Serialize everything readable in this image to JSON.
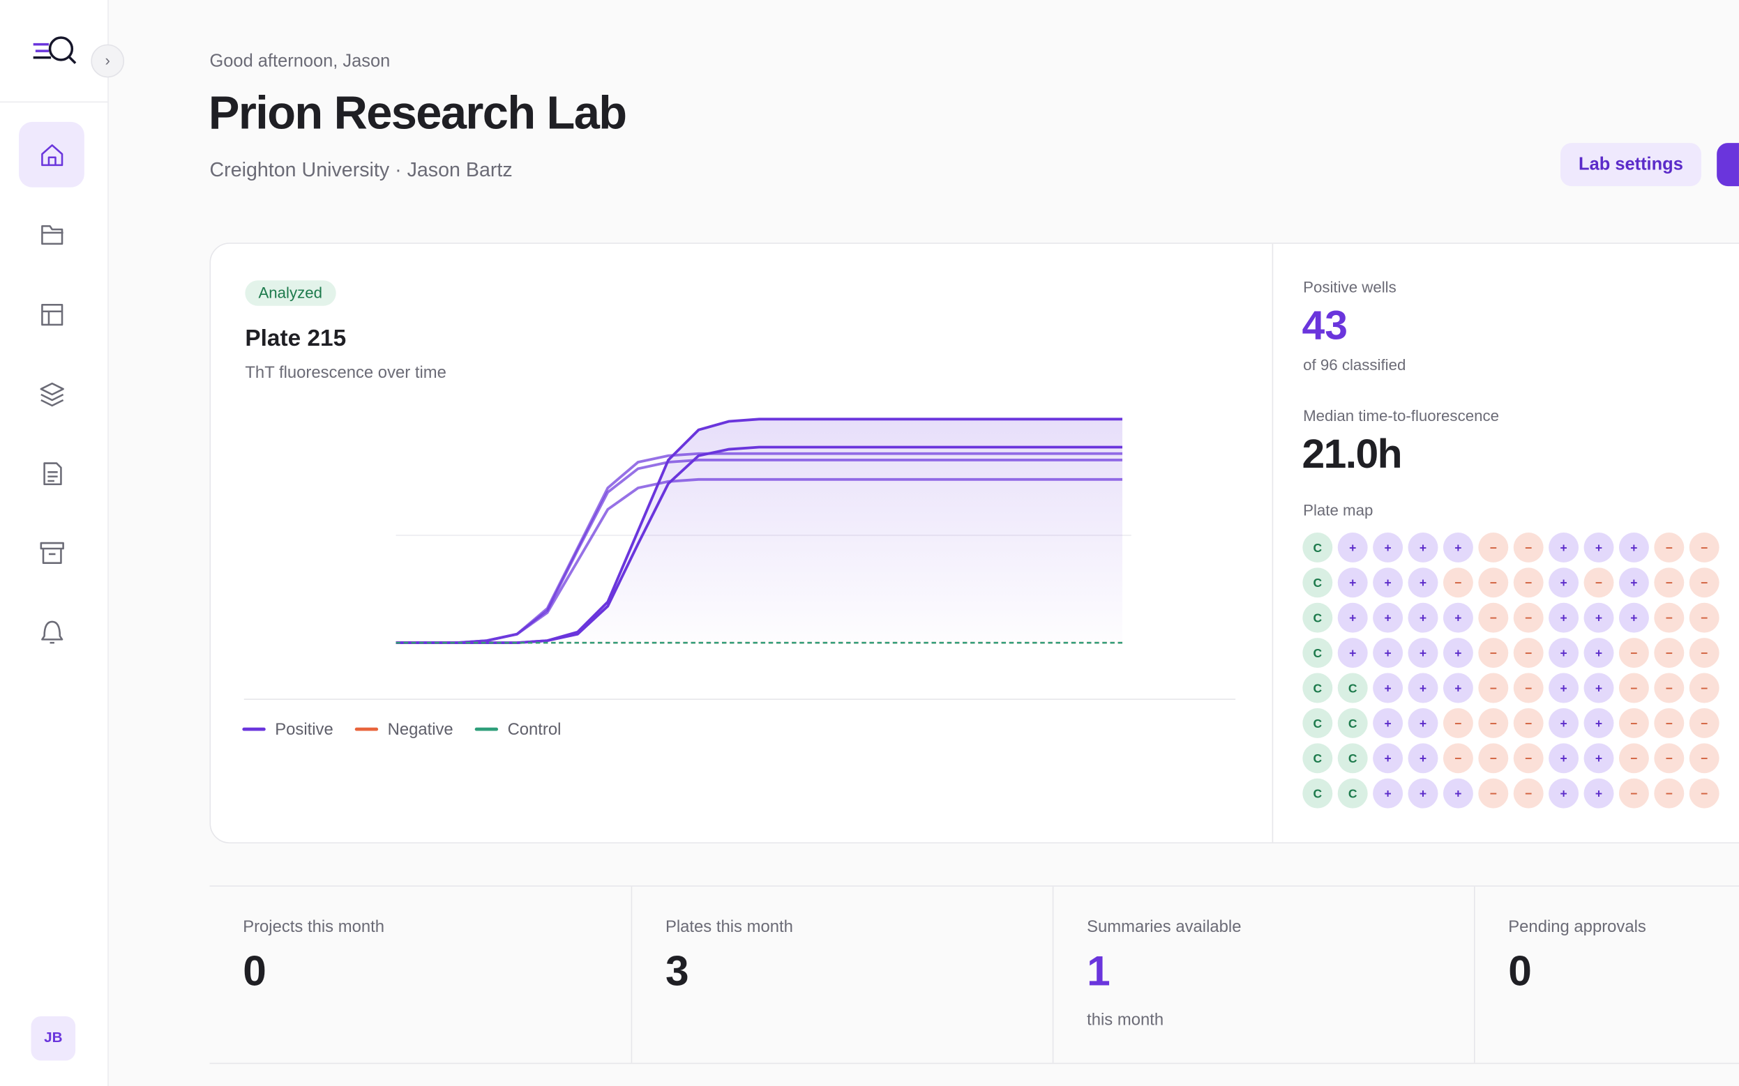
{
  "sidebar": {
    "avatar": "JB"
  },
  "header": {
    "greeting": "Good afternoon, Jason",
    "title": "Prion Research Lab",
    "subtitle": "Creighton University · Jason Bartz",
    "settings_button": "Lab settings"
  },
  "plate_card": {
    "badge": "Analyzed",
    "title": "Plate 215",
    "subtitle": "ThT fluorescence over time",
    "chart_data": {
      "type": "line",
      "x": [
        0,
        3,
        6,
        9,
        12,
        15,
        18,
        21,
        24,
        27,
        30,
        33,
        36,
        39,
        42,
        45,
        48,
        51,
        54,
        57,
        60,
        63,
        66,
        69,
        72
      ],
      "xlim": [
        0,
        72
      ],
      "ylim": [
        -5,
        110
      ],
      "yticks": [
        50
      ],
      "grid": true,
      "series": [
        {
          "name": "Positive",
          "color": "#6a35dc",
          "fill": true,
          "lines": [
            [
              0,
              0,
              0,
              0,
              0,
              1,
              5,
              19,
              52,
              85,
              99,
              103,
              104,
              104,
              104,
              104,
              104,
              104,
              104,
              104,
              104,
              104,
              104,
              104,
              104
            ],
            [
              0,
              0,
              0,
              0,
              0,
              1,
              4,
              17,
              46,
              74,
              87,
              90,
              91,
              91,
              91,
              91,
              91,
              91,
              91,
              91,
              91,
              91,
              91,
              91,
              91
            ],
            [
              0,
              0,
              0,
              1,
              4,
              16,
              44,
              72,
              84,
              87,
              88,
              88,
              88,
              88,
              88,
              88,
              88,
              88,
              88,
              88,
              88,
              88,
              88,
              88,
              88
            ],
            [
              0,
              0,
              0,
              1,
              4,
              15,
              43,
              70,
              81,
              84,
              85,
              85,
              85,
              85,
              85,
              85,
              85,
              85,
              85,
              85,
              85,
              85,
              85,
              85,
              85
            ],
            [
              0,
              0,
              0,
              1,
              4,
              14,
              38,
              62,
              72,
              75,
              76,
              76,
              76,
              76,
              76,
              76,
              76,
              76,
              76,
              76,
              76,
              76,
              76,
              76,
              76
            ]
          ]
        },
        {
          "name": "Negative",
          "color": "#e8643c",
          "dashed": true,
          "lines": [
            [
              0,
              0,
              0,
              0,
              0,
              0,
              0,
              0,
              0,
              0,
              0,
              0,
              0,
              0,
              0,
              0,
              0,
              0,
              0,
              0,
              0,
              0,
              0,
              0,
              0
            ]
          ]
        },
        {
          "name": "Control",
          "color": "#2e9e7a",
          "dashed": true,
          "lines": [
            [
              0,
              0,
              0,
              0,
              0,
              0,
              0,
              0,
              0,
              0,
              0,
              0,
              0,
              0,
              0,
              0,
              0,
              0,
              0,
              0,
              0,
              0,
              0,
              0,
              0
            ]
          ]
        }
      ]
    }
  },
  "summary": {
    "positive_label": "Positive wells",
    "positive_value": "43",
    "positive_note": "of 96 classified",
    "median_label": "Median time-to-fluorescence",
    "median_value": "21.0h",
    "map_label": "Plate map",
    "plate_map": [
      [
        "C",
        "+",
        "+",
        "+",
        "+",
        "−",
        "−",
        "+",
        "+",
        "+",
        "−",
        "−"
      ],
      [
        "C",
        "+",
        "+",
        "+",
        "−",
        "−",
        "−",
        "+",
        "−",
        "+",
        "−",
        "−"
      ],
      [
        "C",
        "+",
        "+",
        "+",
        "+",
        "−",
        "−",
        "+",
        "+",
        "+",
        "−",
        "−"
      ],
      [
        "C",
        "+",
        "+",
        "+",
        "+",
        "−",
        "−",
        "+",
        "+",
        "−",
        "−",
        "−"
      ],
      [
        "C",
        "C",
        "+",
        "+",
        "+",
        "−",
        "−",
        "+",
        "+",
        "−",
        "−",
        "−"
      ],
      [
        "C",
        "C",
        "+",
        "+",
        "−",
        "−",
        "−",
        "+",
        "+",
        "−",
        "−",
        "−"
      ],
      [
        "C",
        "C",
        "+",
        "+",
        "−",
        "−",
        "−",
        "+",
        "+",
        "−",
        "−",
        "−"
      ],
      [
        "C",
        "C",
        "+",
        "+",
        "+",
        "−",
        "−",
        "+",
        "+",
        "−",
        "−",
        "−"
      ]
    ]
  },
  "stats": [
    {
      "label": "Projects this month",
      "value": "0"
    },
    {
      "label": "Plates this month",
      "value": "3"
    },
    {
      "label": "Summaries available",
      "value": "1",
      "note": "this month"
    },
    {
      "label": "Pending approvals",
      "value": "0"
    }
  ]
}
